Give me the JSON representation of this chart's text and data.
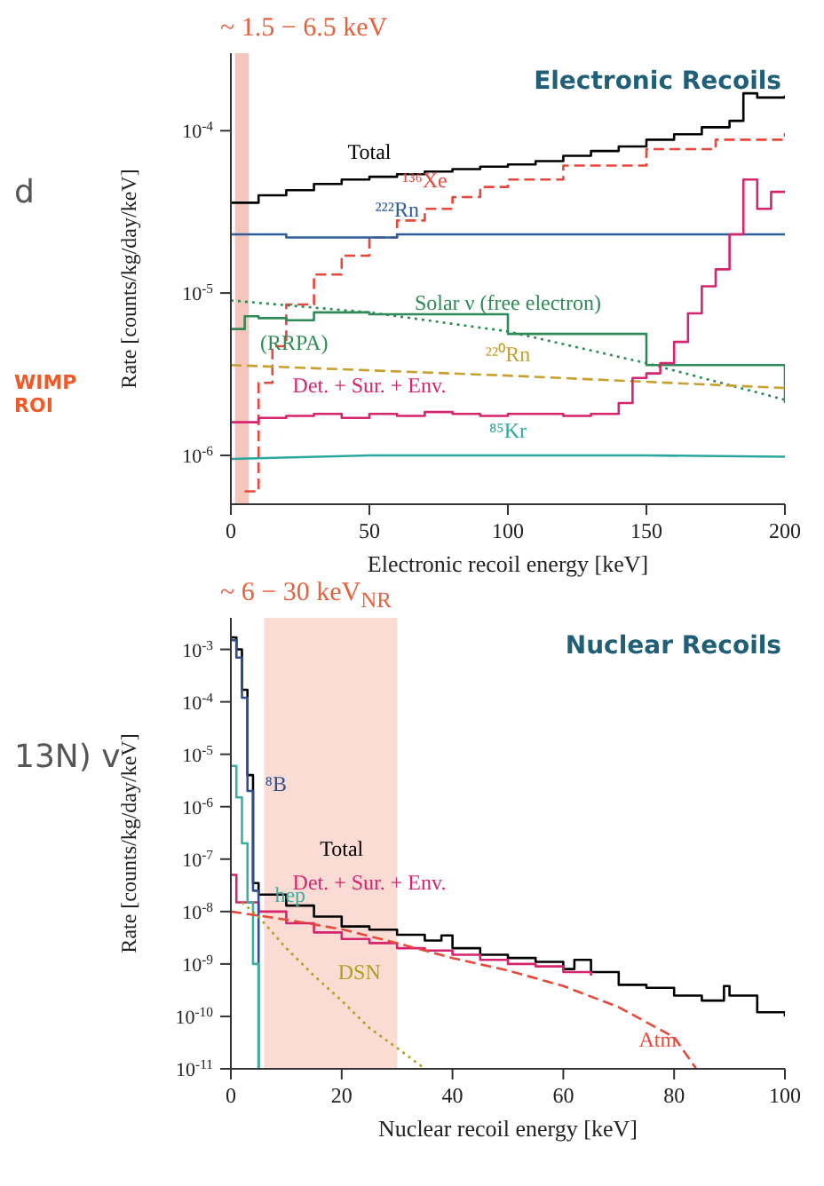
{
  "chart_data": [
    {
      "type": "step",
      "xlabel": "Electronic recoil energy [keV]",
      "ylabel": "Rate [counts/kg/day/keV]",
      "log": "y",
      "xlim": [
        0,
        200
      ],
      "xticks": [
        0,
        50,
        100,
        150,
        200
      ],
      "ylim": [
        5e-07,
        0.0003
      ],
      "yticks": [
        {
          "value": 1e-06,
          "label": "10$^{-6}$"
        },
        {
          "value": 1e-05,
          "label": "10$^{-5}$"
        },
        {
          "value": 0.0001,
          "label": "10$^{-4}$"
        }
      ],
      "bands": [
        {
          "axis": "x",
          "from": 1.5,
          "to": 6.5,
          "label": "~ 1.5 − 6.5 keV",
          "color": "#f4b8ad"
        }
      ],
      "annotations": [
        "Electronic Recoils",
        "d",
        "WIMP ROI"
      ],
      "series": [
        {
          "name": "Total",
          "color": "#000000",
          "x": [
            0,
            10,
            20,
            30,
            40,
            50,
            60,
            70,
            80,
            90,
            100,
            110,
            120,
            130,
            140,
            150,
            160,
            170,
            180,
            185,
            190,
            200
          ],
          "values": [
            3.6e-05,
            4e-05,
            4.3e-05,
            4.7e-05,
            5e-05,
            5.2e-05,
            5.4e-05,
            5.6e-05,
            5.8e-05,
            6e-05,
            6.2e-05,
            6.5e-05,
            7e-05,
            7.5e-05,
            8e-05,
            8.8e-05,
            9.5e-05,
            0.000105,
            0.000115,
            0.00017,
            0.00016,
            0.000165
          ]
        },
        {
          "name": "¹³⁶Xe",
          "color": "#e8483a",
          "line_style": "dashed",
          "x": [
            5,
            10,
            15,
            20,
            30,
            40,
            50,
            60,
            70,
            80,
            90,
            100,
            120,
            150,
            175,
            200
          ],
          "values": [
            6e-07,
            2.8e-06,
            4.7e-06,
            8.5e-06,
            1.3e-05,
            1.7e-05,
            2.2e-05,
            2.8e-05,
            3.3e-05,
            3.9e-05,
            4.5e-05,
            5e-05,
            6.1e-05,
            7.7e-05,
            8.8e-05,
            9.7e-05
          ]
        },
        {
          "name": "²²²Rn",
          "color": "#2f5f9a",
          "x": [
            0,
            10,
            20,
            40,
            60,
            100,
            150,
            200
          ],
          "values": [
            2.3e-05,
            2.3e-05,
            2.2e-05,
            2.2e-05,
            2.3e-05,
            2.3e-05,
            2.3e-05,
            2.3e-05
          ]
        },
        {
          "name": "Solar ν (free electron)",
          "color": "#2e8b57",
          "line_style": "dotted",
          "type": "line",
          "x": [
            0,
            50,
            100,
            150,
            200
          ],
          "values": [
            9e-06,
            7.6e-06,
            5.8e-06,
            3.7e-06,
            2.2e-06
          ]
        },
        {
          "name": "(RRPA)",
          "color": "#2e8b57",
          "x": [
            0,
            5,
            10,
            20,
            30,
            50,
            100,
            150,
            200
          ],
          "values": [
            6e-06,
            7.2e-06,
            7e-06,
            6.8e-06,
            7.6e-06,
            7.4e-06,
            5.6e-06,
            3.6e-06,
            2.1e-06
          ]
        },
        {
          "name": "²²⁰Rn",
          "color": "#c8a030",
          "line_style": "dashed",
          "type": "line",
          "x": [
            0,
            100,
            200
          ],
          "values": [
            3.6e-06,
            3.1e-06,
            2.6e-06
          ]
        },
        {
          "name": "Det. + Sur. + Env.",
          "color": "#d6246e",
          "x": [
            0,
            10,
            20,
            30,
            40,
            50,
            60,
            70,
            80,
            90,
            100,
            110,
            120,
            130,
            140,
            145,
            150,
            155,
            160,
            165,
            170,
            175,
            180,
            185,
            190,
            195,
            200
          ],
          "values": [
            1.6e-06,
            1.7e-06,
            1.75e-06,
            1.8e-06,
            1.7e-06,
            1.8e-06,
            1.75e-06,
            1.85e-06,
            1.8e-06,
            1.75e-06,
            1.8e-06,
            1.8e-06,
            1.75e-06,
            1.8e-06,
            2.1e-06,
            3e-06,
            3.2e-06,
            3.7e-06,
            5e-06,
            7.5e-06,
            1.1e-05,
            1.4e-05,
            2.3e-05,
            5e-05,
            3.3e-05,
            4.2e-05,
            4.2e-05
          ]
        },
        {
          "name": "⁸⁵Kr",
          "color": "#2aa8a0",
          "type": "line",
          "x": [
            0,
            50,
            100,
            150,
            200
          ],
          "values": [
            9.5e-07,
            1e-06,
            1e-06,
            1e-06,
            9.8e-07
          ]
        }
      ]
    },
    {
      "type": "step",
      "xlabel": "Nuclear recoil energy [keV]",
      "ylabel": "Rate [counts/kg/day/keV]",
      "log": "y",
      "xlim": [
        0,
        100
      ],
      "xticks": [
        0,
        20,
        40,
        60,
        80,
        100
      ],
      "ylim": [
        1e-11,
        0.004
      ],
      "yticks": [
        {
          "value": 1e-11,
          "label": "10$^{-11}$"
        },
        {
          "value": 1e-10,
          "label": "10$^{-10}$"
        },
        {
          "value": 1e-09,
          "label": "10$^{-9}$"
        },
        {
          "value": 1e-08,
          "label": "10$^{-8}$"
        },
        {
          "value": 1e-07,
          "label": "10$^{-7}$"
        },
        {
          "value": 1e-06,
          "label": "10$^{-6}$"
        },
        {
          "value": 1e-05,
          "label": "10$^{-5}$"
        },
        {
          "value": 0.0001,
          "label": "10$^{-4}$"
        },
        {
          "value": 0.001,
          "label": "10$^{-3}$"
        }
      ],
      "bands": [
        {
          "axis": "x",
          "from": 6,
          "to": 30,
          "label": "~ 6 − 30 keV$_{NR}$",
          "color": "#f9d3cb"
        }
      ],
      "annotations": [
        "Nuclear Recoils",
        "13N) v"
      ],
      "series": [
        {
          "name": "Total",
          "color": "#000000",
          "x": [
            0,
            1,
            2,
            3,
            4,
            5,
            10,
            15,
            20,
            25,
            30,
            35,
            38,
            40,
            45,
            50,
            55,
            60,
            62,
            65,
            70,
            75,
            80,
            85,
            89,
            90,
            95,
            100
          ],
          "values": [
            0.0017,
            0.001,
            0.00017,
            4e-06,
            3.5e-08,
            2.1e-08,
            1.3e-08,
            8e-09,
            5.2e-09,
            4.5e-09,
            3.6e-09,
            2.8e-09,
            3.5e-09,
            2e-09,
            1.5e-09,
            1.3e-09,
            1.1e-09,
            8e-10,
            1.2e-09,
            7e-10,
            4e-10,
            3.5e-10,
            2.5e-10,
            2e-10,
            3.8e-10,
            2.5e-10,
            1.2e-10,
            1e-10
          ]
        },
        {
          "name": "Det. + Sur. + Env.",
          "color": "#d6246e",
          "x": [
            0,
            1,
            5,
            10,
            15,
            20,
            25,
            30,
            35,
            40,
            45,
            50,
            55,
            60,
            65
          ],
          "values": [
            5e-08,
            1.5e-08,
            1e-08,
            6e-09,
            4e-09,
            3e-09,
            2.5e-09,
            2e-09,
            1.8e-09,
            1.5e-09,
            1.2e-09,
            1e-09,
            9e-10,
            7e-10,
            6e-10
          ]
        },
        {
          "name": "⁸B",
          "color": "#2f4f8f",
          "x": [
            0,
            1,
            2,
            3,
            4,
            5
          ],
          "values": [
            0.0015,
            0.0007,
            0.00012,
            2e-06,
            2.5e-08,
            1e-11
          ]
        },
        {
          "name": "hep",
          "color": "#3ab0a0",
          "x": [
            0,
            1,
            2,
            3,
            4,
            5
          ],
          "values": [
            6e-06,
            1.5e-06,
            2e-07,
            1.5e-08,
            1e-09,
            1e-11
          ]
        },
        {
          "name": "DSN",
          "color": "#b0a020",
          "type": "line",
          "line_style": "dotted",
          "x": [
            2,
            5,
            10,
            15,
            20,
            25,
            30,
            35
          ],
          "values": [
            1.5e-08,
            8e-09,
            2e-09,
            6e-10,
            2e-10,
            6e-11,
            2.5e-11,
            1e-11
          ]
        },
        {
          "name": "Atm",
          "color": "#e8483a",
          "type": "line",
          "line_style": "dashed",
          "x": [
            0,
            10,
            20,
            30,
            40,
            50,
            60,
            70,
            80,
            84
          ],
          "values": [
            1e-08,
            7e-09,
            4.6e-09,
            2.5e-09,
            1.3e-09,
            7.5e-10,
            3.8e-10,
            1.5e-10,
            4e-11,
            1e-11
          ]
        }
      ]
    }
  ]
}
